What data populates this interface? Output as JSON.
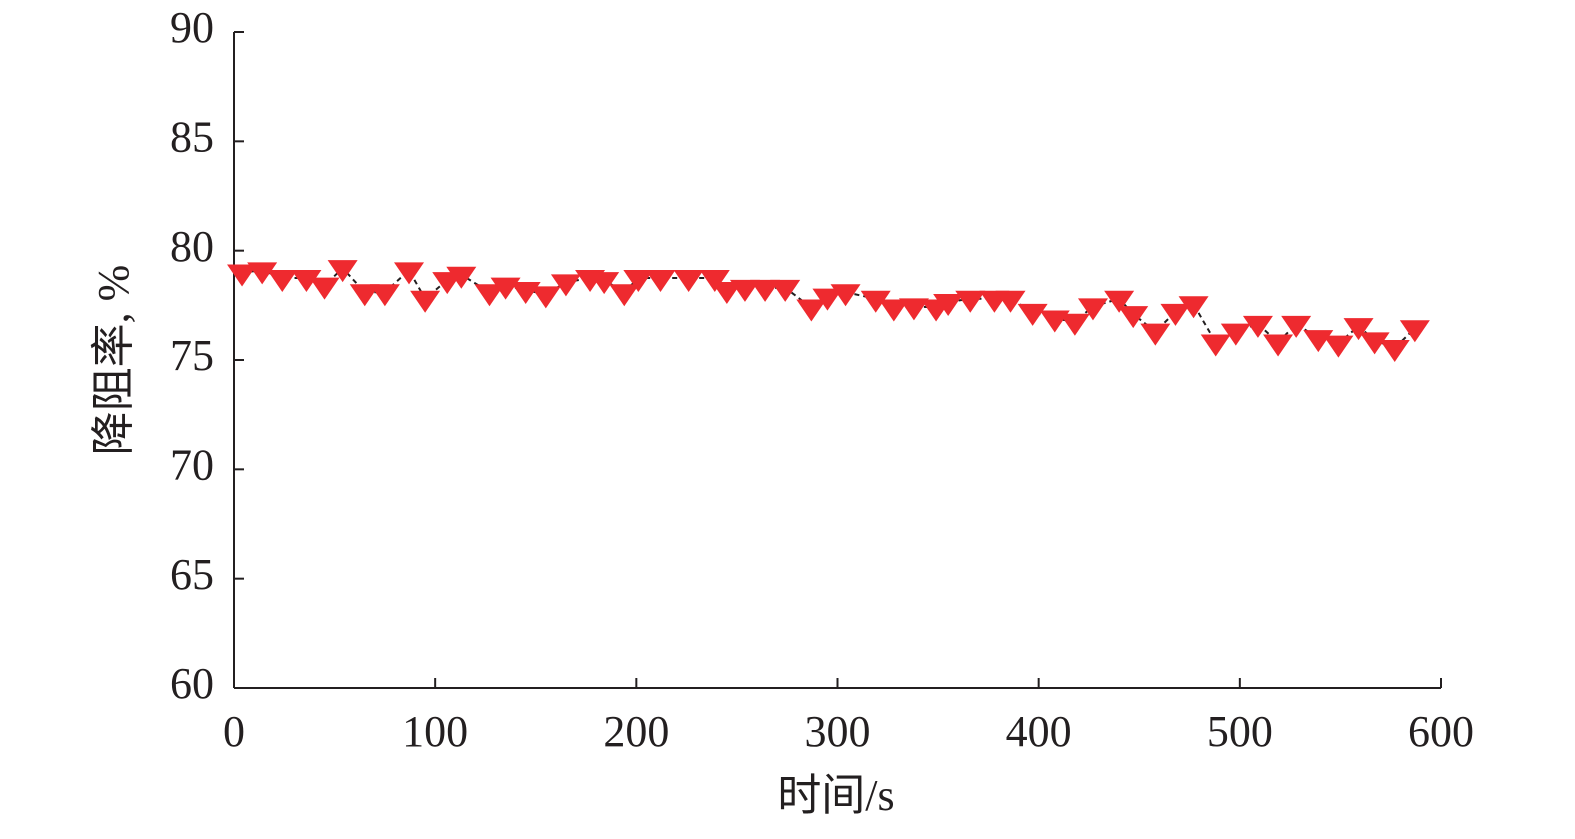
{
  "chart_data": {
    "type": "scatter",
    "x_label": "时间/s",
    "y_label": "降阻率, %",
    "x": [
      4,
      14,
      24,
      36,
      45,
      54,
      65,
      75,
      87,
      95,
      106,
      113,
      127,
      135,
      145,
      155,
      165,
      177,
      184,
      194,
      201,
      212,
      226,
      239,
      245,
      254,
      264,
      274,
      287,
      295,
      304,
      319,
      328,
      338,
      349,
      355,
      366,
      378,
      386,
      397,
      408,
      418,
      427,
      440,
      447,
      458,
      468,
      477,
      488,
      498,
      509,
      519,
      528,
      539,
      549,
      559,
      567,
      577,
      587
    ],
    "values": [
      79.0,
      79.1,
      78.75,
      78.75,
      78.4,
      79.2,
      78.1,
      78.1,
      79.1,
      77.8,
      78.65,
      78.9,
      78.1,
      78.4,
      78.2,
      78.0,
      78.55,
      78.75,
      78.65,
      78.1,
      78.75,
      78.75,
      78.75,
      78.75,
      78.2,
      78.3,
      78.3,
      78.3,
      77.4,
      77.9,
      78.1,
      77.8,
      77.4,
      77.45,
      77.4,
      77.65,
      77.8,
      77.8,
      77.8,
      77.2,
      76.9,
      76.75,
      77.45,
      77.8,
      77.1,
      76.3,
      77.2,
      77.55,
      75.8,
      76.3,
      76.65,
      75.8,
      76.65,
      76.0,
      75.75,
      76.55,
      75.9,
      75.55,
      76.45
    ],
    "color": "#ee2a2f",
    "line_color": "#231f20",
    "line_dashed": true,
    "xlim": [
      0,
      600
    ],
    "xticks": [
      0,
      100,
      200,
      300,
      400,
      500,
      600
    ],
    "ylim": [
      60,
      90
    ],
    "yticks": [
      60,
      65,
      70,
      75,
      80,
      85,
      90
    ]
  }
}
